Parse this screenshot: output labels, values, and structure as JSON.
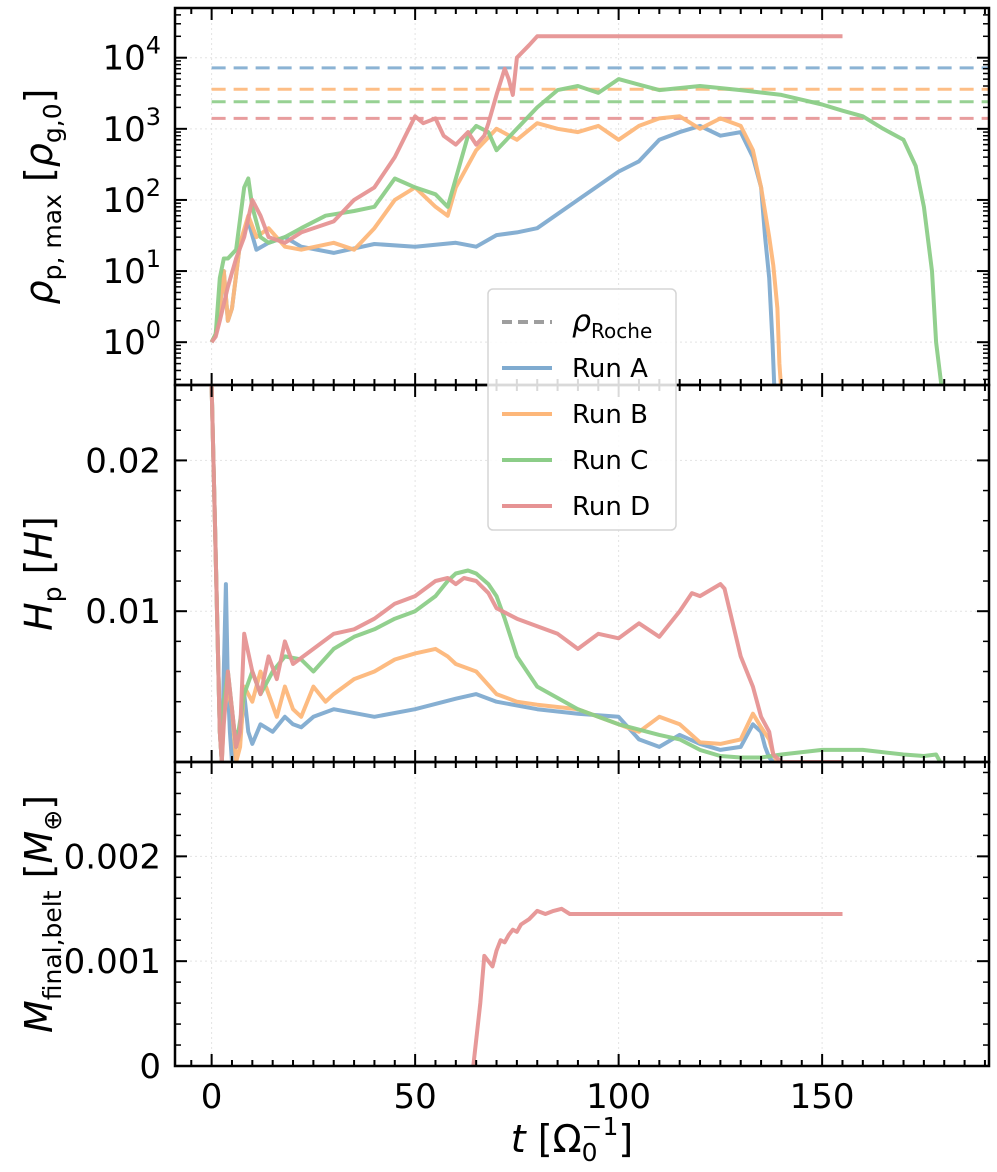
{
  "chart_data": [
    {
      "type": "line",
      "panel": "top",
      "yscale": "log",
      "ylabel_parts": {
        "sym": "ρ",
        "sub": "p, max",
        "unit_sym": "ρ",
        "unit_sub": "g,0"
      },
      "xlim": [
        -9,
        191
      ],
      "ylim": [
        0.25,
        50000
      ],
      "yticks": [
        {
          "v": 1,
          "b": "10",
          "e": "0"
        },
        {
          "v": 10,
          "b": "10",
          "e": "1"
        },
        {
          "v": 100,
          "b": "10",
          "e": "2"
        },
        {
          "v": 1000,
          "b": "10",
          "e": "3"
        },
        {
          "v": 10000,
          "b": "10",
          "e": "4"
        }
      ],
      "grid": true,
      "reference_lines": {
        "name": "ρRoche",
        "style": "dashed",
        "values": {
          "Run A": 7200,
          "Run B": 3600,
          "Run C": 2400,
          "Run D": 1400
        },
        "x_range": [
          0,
          191
        ]
      },
      "series": [
        {
          "name": "Run A",
          "color": "#7fabd0",
          "x": [
            0,
            1,
            2,
            3,
            4,
            5,
            7,
            9,
            11,
            14,
            18,
            22,
            30,
            40,
            50,
            60,
            65,
            70,
            75,
            80,
            90,
            100,
            105,
            110,
            115,
            120,
            125,
            130,
            133,
            135,
            136,
            137,
            137.8,
            138.3
          ],
          "y": [
            1,
            1.3,
            3,
            10,
            2,
            3,
            25,
            50,
            20,
            25,
            30,
            22,
            18,
            24,
            22,
            25,
            22,
            32,
            35,
            40,
            100,
            250,
            350,
            700,
            900,
            1100,
            800,
            900,
            400,
            150,
            30,
            8,
            1,
            0.2
          ]
        },
        {
          "name": "Run B",
          "color": "#fdb77a",
          "x": [
            0,
            1,
            2,
            3,
            4,
            5,
            7,
            9,
            11,
            14,
            18,
            22,
            30,
            35,
            40,
            45,
            50,
            55,
            58,
            60,
            65,
            70,
            75,
            80,
            85,
            90,
            95,
            100,
            105,
            110,
            115,
            120,
            125,
            130,
            133,
            135,
            137,
            138,
            139,
            139.5,
            140
          ],
          "y": [
            1,
            1.3,
            3,
            10,
            2,
            3,
            25,
            60,
            30,
            40,
            22,
            20,
            25,
            20,
            40,
            100,
            150,
            80,
            60,
            150,
            500,
            1000,
            700,
            1200,
            1000,
            900,
            1100,
            700,
            1100,
            1400,
            1500,
            1000,
            1400,
            1100,
            500,
            150,
            30,
            12,
            3,
            0.5,
            0.2
          ]
        },
        {
          "name": "Run C",
          "color": "#8ccd88",
          "x": [
            0,
            1,
            2,
            3,
            4,
            6,
            8,
            9,
            10,
            12,
            14,
            18,
            22,
            28,
            35,
            40,
            45,
            50,
            55,
            58,
            60,
            63,
            65,
            68,
            70,
            75,
            80,
            85,
            90,
            95,
            100,
            110,
            120,
            130,
            140,
            150,
            155,
            160,
            165,
            170,
            173,
            175,
            177,
            178,
            179.5
          ],
          "y": [
            1,
            1.3,
            8,
            15,
            15,
            20,
            150,
            200,
            80,
            30,
            25,
            30,
            40,
            60,
            70,
            80,
            200,
            150,
            120,
            80,
            200,
            800,
            1100,
            900,
            500,
            1000,
            2000,
            3500,
            4000,
            3200,
            5000,
            3500,
            4000,
            3500,
            3000,
            2200,
            1800,
            1500,
            1000,
            700,
            300,
            80,
            10,
            1,
            0.2
          ]
        },
        {
          "name": "Run D",
          "color": "#e69394",
          "x": [
            0,
            1,
            2,
            4,
            6,
            8,
            10,
            12,
            14,
            18,
            22,
            30,
            35,
            40,
            45,
            50,
            52,
            55,
            57,
            60,
            63,
            65,
            67,
            68,
            70,
            72,
            73,
            74,
            75,
            78,
            80,
            85,
            90,
            100,
            110,
            120,
            130,
            140,
            150,
            155
          ],
          "y": [
            1,
            1.2,
            2,
            6,
            15,
            30,
            100,
            60,
            30,
            25,
            35,
            50,
            100,
            150,
            400,
            1500,
            1200,
            1400,
            800,
            600,
            900,
            600,
            800,
            1200,
            3000,
            7000,
            5000,
            3000,
            10000,
            15000,
            20000,
            20000,
            20000,
            20000,
            20000,
            20000,
            20000,
            20000,
            20000,
            20000
          ]
        }
      ],
      "legend": {
        "placement": "center",
        "entries": [
          "ρRoche",
          "Run A",
          "Run B",
          "Run C",
          "Run D"
        ]
      }
    },
    {
      "type": "line",
      "panel": "middle",
      "ylabel_parts": {
        "sym": "H",
        "sub": "p",
        "unit_sym": "H"
      },
      "xlim": [
        -9,
        191
      ],
      "ylim": [
        0,
        0.025
      ],
      "yticks": [
        {
          "v": 0.01,
          "t": "0.01"
        },
        {
          "v": 0.02,
          "t": "0.02"
        }
      ],
      "grid": true,
      "series": [
        {
          "name": "Run A",
          "color": "#7fabd0",
          "x": [
            0,
            0.8,
            1.5,
            2,
            2.5,
            3,
            3.5,
            4,
            4.5,
            5,
            5.5,
            6,
            7,
            8,
            9,
            10,
            12,
            15,
            18,
            20,
            22,
            25,
            30,
            40,
            50,
            60,
            65,
            70,
            80,
            90,
            100,
            105,
            110,
            115,
            120,
            125,
            130,
            133,
            135,
            136,
            137,
            138
          ],
          "y": [
            0.025,
            0.016,
            0.008,
            0.002,
            0,
            0.006,
            0.0118,
            0.005,
            0.002,
            0,
            0.001,
            0.002,
            0.0015,
            0.0045,
            0.002,
            0.0012,
            0.0025,
            0.002,
            0.003,
            0.0025,
            0.0023,
            0.003,
            0.0035,
            0.003,
            0.0035,
            0.0042,
            0.0045,
            0.004,
            0.0035,
            0.0032,
            0.003,
            0.0015,
            0.001,
            0.0018,
            0.0012,
            0.0008,
            0.001,
            0.0025,
            0.002,
            0.001,
            0.0003,
            0
          ]
        },
        {
          "name": "Run B",
          "color": "#fdb77a",
          "x": [
            0,
            0.8,
            1.5,
            2,
            2.5,
            3,
            4,
            5,
            6,
            7,
            8,
            10,
            12,
            14,
            16,
            18,
            20,
            22,
            25,
            28,
            30,
            35,
            40,
            45,
            50,
            55,
            58,
            60,
            65,
            70,
            75,
            80,
            90,
            100,
            105,
            110,
            115,
            120,
            125,
            130,
            133,
            135,
            137,
            138,
            139
          ],
          "y": [
            0.025,
            0.016,
            0.008,
            0.002,
            0,
            0.003,
            0.005,
            0.0035,
            0,
            0.001,
            0.005,
            0.004,
            0.006,
            0.0045,
            0.003,
            0.005,
            0.0035,
            0.003,
            0.005,
            0.004,
            0.0045,
            0.0055,
            0.006,
            0.0068,
            0.0072,
            0.0075,
            0.007,
            0.0065,
            0.006,
            0.0045,
            0.004,
            0.0038,
            0.0035,
            0.0025,
            0.002,
            0.003,
            0.0025,
            0.0013,
            0.0012,
            0.0015,
            0.0032,
            0.0023,
            0.0015,
            0.0005,
            0
          ]
        },
        {
          "name": "Run C",
          "color": "#8ccd88",
          "x": [
            0,
            0.8,
            1.5,
            2,
            2.5,
            3,
            4,
            5,
            6,
            8,
            10,
            12,
            15,
            18,
            22,
            25,
            30,
            35,
            40,
            45,
            50,
            55,
            58,
            60,
            63,
            65,
            68,
            70,
            72,
            75,
            80,
            90,
            100,
            110,
            115,
            120,
            125,
            130,
            135,
            140,
            150,
            160,
            170,
            175,
            178,
            179
          ],
          "y": [
            0.025,
            0.016,
            0.008,
            0.002,
            0,
            0.004,
            0.006,
            0.0035,
            0.001,
            0.0045,
            0.006,
            0.0045,
            0.006,
            0.007,
            0.0068,
            0.006,
            0.0075,
            0.0083,
            0.0088,
            0.0095,
            0.01,
            0.011,
            0.012,
            0.0125,
            0.0127,
            0.0125,
            0.0118,
            0.011,
            0.0095,
            0.007,
            0.005,
            0.0035,
            0.0025,
            0.0018,
            0.0015,
            0.0008,
            0.0004,
            0.0003,
            0.0003,
            0.0005,
            0.0008,
            0.0008,
            0.0005,
            0.0004,
            0.0005,
            0
          ]
        },
        {
          "name": "Run D",
          "color": "#e69394",
          "x": [
            0,
            0.8,
            1.5,
            2,
            2.5,
            3,
            4,
            5,
            6,
            7,
            8,
            10,
            12,
            14,
            16,
            18,
            20,
            25,
            30,
            35,
            40,
            45,
            50,
            55,
            58,
            60,
            62,
            65,
            68,
            70,
            75,
            80,
            85,
            90,
            95,
            100,
            105,
            110,
            115,
            118,
            120,
            125,
            126,
            130,
            133,
            135,
            137,
            138,
            140,
            145,
            150,
            155
          ],
          "y": [
            0.025,
            0.016,
            0.008,
            0.002,
            0,
            0.0025,
            0.006,
            0.0035,
            0.001,
            0.002,
            0.0085,
            0.006,
            0.0045,
            0.007,
            0.0055,
            0.008,
            0.0065,
            0.0075,
            0.0085,
            0.0088,
            0.0095,
            0.0105,
            0.011,
            0.012,
            0.0122,
            0.0118,
            0.0122,
            0.012,
            0.0112,
            0.0102,
            0.0095,
            0.009,
            0.0085,
            0.0075,
            0.0085,
            0.0082,
            0.0092,
            0.0083,
            0.01,
            0.0112,
            0.011,
            0.0118,
            0.0115,
            0.007,
            0.005,
            0.003,
            0.002,
            0.0005,
            0,
            0,
            0,
            0
          ]
        }
      ]
    },
    {
      "type": "line",
      "panel": "bottom",
      "ylabel_parts": {
        "sym": "M",
        "sub": "final,belt",
        "unit_sym": "M",
        "unit_sub": "⊕"
      },
      "xlabel_parts": {
        "sym": "t",
        "unit_sym": "Ω",
        "unit_sub": "0",
        "unit_sup": "−1"
      },
      "xlim": [
        -9,
        191
      ],
      "ylim": [
        0,
        0.0029
      ],
      "xticks": [
        {
          "v": 0,
          "t": "0"
        },
        {
          "v": 50,
          "t": "50"
        },
        {
          "v": 100,
          "t": "100"
        },
        {
          "v": 150,
          "t": "150"
        }
      ],
      "yticks": [
        {
          "v": 0,
          "t": "0"
        },
        {
          "v": 0.001,
          "t": "0.001"
        },
        {
          "v": 0.002,
          "t": "0.002"
        }
      ],
      "grid": true,
      "series": [
        {
          "name": "Run D",
          "color": "#e69394",
          "x": [
            64.3,
            66,
            67,
            68,
            69,
            70,
            71,
            72,
            73,
            74,
            75,
            76,
            78,
            80,
            82,
            84,
            86,
            88,
            90,
            100,
            120,
            140,
            155
          ],
          "y": [
            0,
            0.0006,
            0.00105,
            0.001,
            0.00095,
            0.0011,
            0.0012,
            0.00118,
            0.00125,
            0.0013,
            0.00128,
            0.00135,
            0.0014,
            0.00148,
            0.00145,
            0.00148,
            0.0015,
            0.00145,
            0.00145,
            0.00145,
            0.00145,
            0.00145,
            0.00145
          ]
        }
      ]
    }
  ]
}
